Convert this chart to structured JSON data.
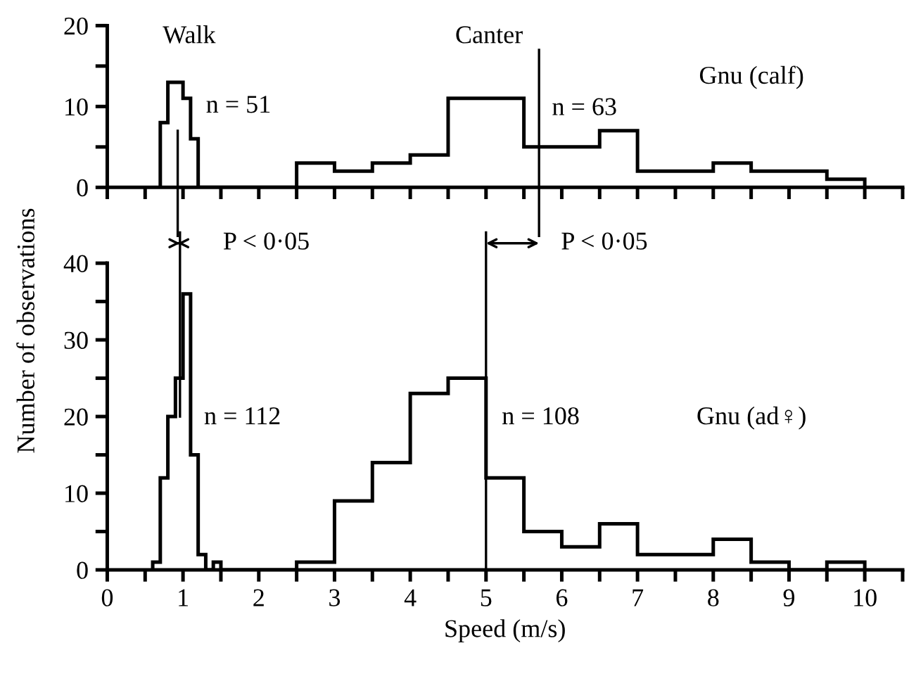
{
  "chart_data": [
    {
      "type": "histogram",
      "tick_labels": "y",
      "bins": [
        0.7,
        0.8,
        0.9,
        1.0,
        1.1,
        1.2,
        2.5,
        3,
        3.5,
        4,
        4.5,
        5,
        5.5,
        6,
        6.5,
        7,
        7.5,
        8,
        8.5,
        9,
        9.5,
        10
      ],
      "values": [
        8,
        13,
        13,
        11,
        6,
        0,
        3,
        2,
        3,
        4,
        11,
        11,
        5,
        5,
        7,
        2,
        2,
        3,
        2,
        2,
        1
      ],
      "color": "#000000",
      "xlim": [
        0,
        10.5
      ],
      "xticks": [
        0,
        0.5,
        1,
        1.5,
        2,
        2.5,
        3,
        3.5,
        4,
        4.5,
        5,
        5.5,
        6,
        6.5,
        7,
        7.5,
        8,
        8.5,
        9,
        9.5,
        10,
        10.5
      ],
      "ylim": [
        0,
        20
      ],
      "yticks": [
        0,
        {
          "value": 5,
          "label": null
        },
        10,
        {
          "value": 15,
          "label": null
        },
        20
      ],
      "ref_lines": [
        {
          "axis": "x",
          "value": 0.93,
          "color": "#000000"
        },
        {
          "axis": "x",
          "value": 5.7,
          "color": "#000000"
        }
      ],
      "annotations": [
        "Walk",
        "Canter",
        "n = 51",
        "n = 63",
        "Gnu (calf)"
      ]
    },
    {
      "type": "histogram",
      "bins": [
        0.6,
        0.7,
        0.8,
        0.9,
        1.0,
        1.1,
        1.2,
        1.3,
        1.4,
        1.5,
        2.5,
        3,
        3.5,
        4,
        4.5,
        5,
        5.5,
        6,
        6.5,
        7,
        7.5,
        8,
        8.5,
        9,
        9.5,
        10
      ],
      "values": [
        1,
        12,
        20,
        25,
        36,
        15,
        2,
        0,
        1,
        0,
        1,
        9,
        14,
        23,
        25,
        12,
        5,
        3,
        6,
        2,
        2,
        4,
        1,
        0,
        1
      ],
      "color": "#000000",
      "xlabel": "Speed (m/s)",
      "ylabel": "Number of observations",
      "xlim": [
        0,
        10.5
      ],
      "xticks": [
        0,
        {
          "value": 0.5,
          "label": null
        },
        1,
        {
          "value": 1.5,
          "label": null
        },
        2,
        {
          "value": 2.5,
          "label": null
        },
        3,
        {
          "value": 3.5,
          "label": null
        },
        4,
        {
          "value": 4.5,
          "label": null
        },
        5,
        {
          "value": 5.5,
          "label": null
        },
        6,
        {
          "value": 6.5,
          "label": null
        },
        7,
        {
          "value": 7.5,
          "label": null
        },
        8,
        {
          "value": 8.5,
          "label": null
        },
        9,
        {
          "value": 9.5,
          "label": null
        },
        10,
        {
          "value": 10.5,
          "label": null
        }
      ],
      "ylim": [
        0,
        40
      ],
      "yticks": [
        0,
        {
          "value": 5,
          "label": null
        },
        10,
        {
          "value": 15,
          "label": null
        },
        20,
        {
          "value": 25,
          "label": null
        },
        30,
        {
          "value": 35,
          "label": null
        },
        40
      ],
      "ref_lines": [
        {
          "axis": "x",
          "value": 0.96,
          "color": "#000000"
        },
        {
          "axis": "x",
          "value": 5.0,
          "color": "#000000"
        }
      ],
      "annotations": [
        "n = 112",
        "n = 108",
        "Gnu (ad♀)",
        "P < 0·05",
        "P < 0·05"
      ]
    }
  ]
}
